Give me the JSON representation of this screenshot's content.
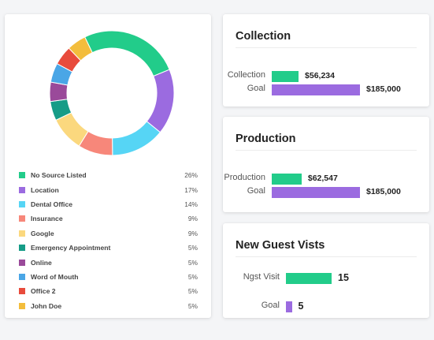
{
  "colors": {
    "green": "#22cc8a",
    "purple": "#9b6be0",
    "cyan": "#56d5f5",
    "salmon": "#f7877a",
    "yellow": "#fbd87e",
    "teal": "#169c87",
    "plum": "#9a4a9a",
    "blue": "#4aa6e6",
    "red": "#e84b3c",
    "gold": "#f3bd3c"
  },
  "sources": {
    "chart_data": {
      "type": "pie",
      "categories": [
        "No Source Listed",
        "Location",
        "Dental Office",
        "Insurance",
        "Google",
        "Emergency Appointment",
        "Online",
        "Word of Mouth",
        "Office 2",
        "John Doe"
      ],
      "values": [
        26,
        17,
        14,
        9,
        9,
        5,
        5,
        5,
        5,
        5
      ],
      "labels": [
        "26%",
        "17%",
        "14%",
        "9%",
        "9%",
        "5%",
        "5%",
        "5%",
        "5%",
        "5%"
      ],
      "colors": [
        "#22cc8a",
        "#9b6be0",
        "#56d5f5",
        "#f7877a",
        "#fbd87e",
        "#169c87",
        "#9a4a9a",
        "#4aa6e6",
        "#e84b3c",
        "#f3bd3c"
      ],
      "legend_position": "bottom"
    }
  },
  "collection": {
    "title": "Collection",
    "rows": [
      {
        "label": "Collection",
        "value": 56234,
        "display": "$56,234"
      },
      {
        "label": "Goal",
        "value": 185000,
        "display": "$185,000"
      }
    ]
  },
  "production": {
    "title": "Production",
    "rows": [
      {
        "label": "Production",
        "value": 62547,
        "display": "$62,547"
      },
      {
        "label": "Goal",
        "value": 185000,
        "display": "$185,000"
      }
    ]
  },
  "guests": {
    "title": "New Guest Vists",
    "rows": [
      {
        "label": "Ngst Visit",
        "value": 15,
        "display": "15"
      },
      {
        "label": "Goal",
        "value": 5,
        "display": "5"
      }
    ]
  }
}
